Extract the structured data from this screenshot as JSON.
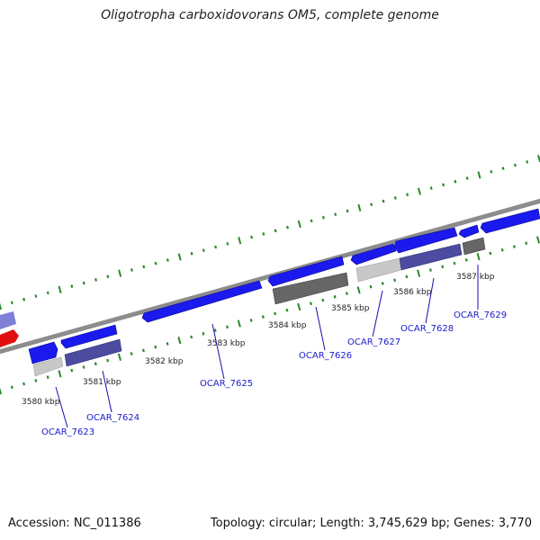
{
  "title": "Oligotropha carboxidovorans OM5, complete genome",
  "footer": {
    "accession": "Accession: NC_011386",
    "topology": "Topology: circular; Length: 3,745,629 bp; Genes: 3,770"
  },
  "kbp_labels": [
    "3580 kbp",
    "3581 kbp",
    "3582 kbp",
    "3583 kbp",
    "3584 kbp",
    "3585 kbp",
    "3586 kbp",
    "3587 kbp"
  ],
  "gene_labels": [
    "OCAR_7623",
    "OCAR_7624",
    "OCAR_7625",
    "OCAR_7626",
    "OCAR_7627",
    "OCAR_7628",
    "OCAR_7629"
  ],
  "colors": {
    "backbone": "#8c8c8c",
    "forward_gene": "#1a1aee",
    "reverse_gene": "#e01010",
    "pale_gene": "#7f7fd8",
    "feature_light": "#c8c8c8",
    "feature_dark": "#666666",
    "feature_navy": "#4b4ba0",
    "tick": "#2a8a2a",
    "gene_label": "#1a1acc"
  }
}
